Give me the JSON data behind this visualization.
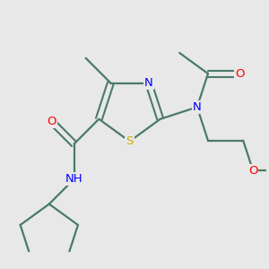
{
  "background_color": "#e8e8e8",
  "bond_color": "#4a7a6a",
  "atom_colors": {
    "N": "#0000ff",
    "O": "#ff0000",
    "S": "#ccaa00",
    "C": "#000000",
    "H": "#777777"
  },
  "font_size": 9.5,
  "figsize": [
    3.0,
    3.0
  ],
  "dpi": 100
}
